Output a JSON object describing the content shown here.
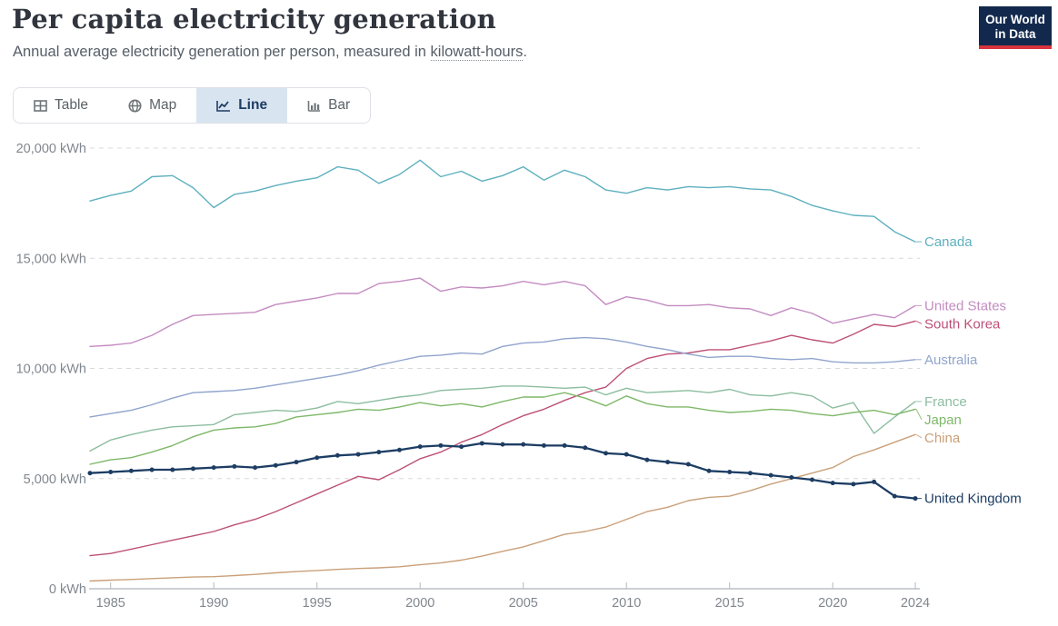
{
  "header": {
    "title": "Per capita electricity generation",
    "subtitle_prefix": "Annual average electricity generation per person, measured in ",
    "subtitle_link": "kilowatt-hours",
    "subtitle_suffix": ".",
    "logo_line1": "Our World",
    "logo_line2": "in Data"
  },
  "tabs": {
    "items": [
      {
        "label": "Table",
        "icon": "table-icon",
        "selected": false
      },
      {
        "label": "Map",
        "icon": "globe-icon",
        "selected": false
      },
      {
        "label": "Line",
        "icon": "line-chart-icon",
        "selected": true
      },
      {
        "label": "Bar",
        "icon": "bar-chart-icon",
        "selected": false
      }
    ]
  },
  "chart_data": {
    "type": "line",
    "unit": "kWh",
    "title": "Per capita electricity generation",
    "xlabel": "",
    "ylabel": "kWh",
    "ylim": [
      0,
      20000
    ],
    "grid": true,
    "legend_position": "right-end-labels",
    "x_ticks": [
      1985,
      1990,
      1995,
      2000,
      2005,
      2010,
      2015,
      2020,
      2024
    ],
    "y_ticks": [
      {
        "value": 0,
        "label": "0 kWh"
      },
      {
        "value": 5000,
        "label": "5,000 kWh"
      },
      {
        "value": 10000,
        "label": "10,000 kWh"
      },
      {
        "value": 15000,
        "label": "15,000 kWh"
      },
      {
        "value": 20000,
        "label": "20,000 kWh"
      }
    ],
    "years": [
      1984,
      1985,
      1986,
      1987,
      1988,
      1989,
      1990,
      1991,
      1992,
      1993,
      1994,
      1995,
      1996,
      1997,
      1998,
      1999,
      2000,
      2001,
      2002,
      2003,
      2004,
      2005,
      2006,
      2007,
      2008,
      2009,
      2010,
      2011,
      2012,
      2013,
      2014,
      2015,
      2016,
      2017,
      2018,
      2019,
      2020,
      2021,
      2022,
      2023,
      2024
    ],
    "series": [
      {
        "name": "Canada",
        "color": "#5eb0bf",
        "focused": false,
        "values": [
          17600,
          17850,
          18050,
          18700,
          18750,
          18200,
          17300,
          17900,
          18050,
          18300,
          18500,
          18650,
          19150,
          19000,
          18400,
          18800,
          19450,
          18700,
          18950,
          18500,
          18750,
          19150,
          18550,
          19000,
          18700,
          18100,
          17950,
          18200,
          18100,
          18250,
          18200,
          18250,
          18150,
          18100,
          17800,
          17400,
          17150,
          16950,
          16900,
          16200,
          15750
        ]
      },
      {
        "name": "United States",
        "color": "#c48cc1",
        "focused": false,
        "values": [
          11000,
          11050,
          11150,
          11500,
          12000,
          12400,
          12450,
          12500,
          12550,
          12900,
          13050,
          13200,
          13400,
          13400,
          13850,
          13950,
          14100,
          13500,
          13700,
          13650,
          13750,
          13950,
          13800,
          13950,
          13750,
          12900,
          13250,
          13100,
          12850,
          12850,
          12900,
          12750,
          12700,
          12400,
          12750,
          12500,
          12050,
          12250,
          12450,
          12300,
          12850
        ]
      },
      {
        "name": "South Korea",
        "color": "#bd5077",
        "focused": false,
        "values": [
          1500,
          1600,
          1800,
          2000,
          2200,
          2400,
          2600,
          2900,
          3150,
          3500,
          3900,
          4300,
          4700,
          5100,
          4950,
          5400,
          5900,
          6200,
          6650,
          7000,
          7450,
          7850,
          8150,
          8550,
          8900,
          9150,
          10000,
          10450,
          10650,
          10700,
          10850,
          10850,
          11050,
          11250,
          11500,
          11300,
          11150,
          11550,
          12000,
          11900,
          12150
        ]
      },
      {
        "name": "Australia",
        "color": "#90a4cd",
        "focused": false,
        "values": [
          7800,
          7950,
          8100,
          8350,
          8650,
          8900,
          8950,
          9000,
          9100,
          9250,
          9400,
          9550,
          9700,
          9900,
          10150,
          10350,
          10550,
          10600,
          10700,
          10650,
          11000,
          11150,
          11200,
          11350,
          11400,
          11350,
          11200,
          11000,
          10850,
          10650,
          10500,
          10550,
          10550,
          10450,
          10400,
          10450,
          10300,
          10250,
          10250,
          10300,
          10400
        ]
      },
      {
        "name": "France",
        "color": "#8cbda0",
        "focused": false,
        "values": [
          6250,
          6750,
          7000,
          7200,
          7350,
          7400,
          7450,
          7900,
          8000,
          8100,
          8050,
          8200,
          8500,
          8400,
          8550,
          8700,
          8800,
          9000,
          9050,
          9100,
          9200,
          9200,
          9150,
          9100,
          9150,
          8800,
          9100,
          8900,
          8950,
          9000,
          8900,
          9050,
          8800,
          8750,
          8900,
          8750,
          8200,
          8450,
          7050,
          7800,
          8500
        ]
      },
      {
        "name": "Japan",
        "color": "#7eb868",
        "focused": false,
        "values": [
          5650,
          5850,
          5950,
          6200,
          6500,
          6900,
          7200,
          7300,
          7350,
          7500,
          7800,
          7900,
          8000,
          8150,
          8100,
          8250,
          8450,
          8300,
          8400,
          8250,
          8500,
          8700,
          8700,
          8900,
          8650,
          8300,
          8750,
          8400,
          8250,
          8250,
          8100,
          8000,
          8050,
          8150,
          8100,
          7950,
          7850,
          8000,
          8100,
          7900,
          8150
        ]
      },
      {
        "name": "China",
        "color": "#c9a079",
        "focused": false,
        "values": [
          350,
          390,
          420,
          460,
          500,
          530,
          550,
          600,
          650,
          720,
          780,
          830,
          880,
          920,
          950,
          1000,
          1090,
          1170,
          1300,
          1480,
          1700,
          1900,
          2180,
          2470,
          2600,
          2800,
          3150,
          3500,
          3700,
          4000,
          4150,
          4200,
          4450,
          4750,
          5000,
          5250,
          5500,
          6000,
          6300,
          6650,
          7000
        ]
      },
      {
        "name": "United Kingdom",
        "color": "#1d3d63",
        "focused": true,
        "values": [
          5250,
          5300,
          5350,
          5400,
          5400,
          5450,
          5500,
          5550,
          5500,
          5600,
          5750,
          5950,
          6050,
          6100,
          6200,
          6300,
          6450,
          6500,
          6450,
          6600,
          6550,
          6550,
          6500,
          6500,
          6400,
          6150,
          6100,
          5850,
          5750,
          5650,
          5350,
          5300,
          5250,
          5150,
          5050,
          4950,
          4800,
          4750,
          4850,
          4200,
          4100
        ]
      }
    ]
  }
}
